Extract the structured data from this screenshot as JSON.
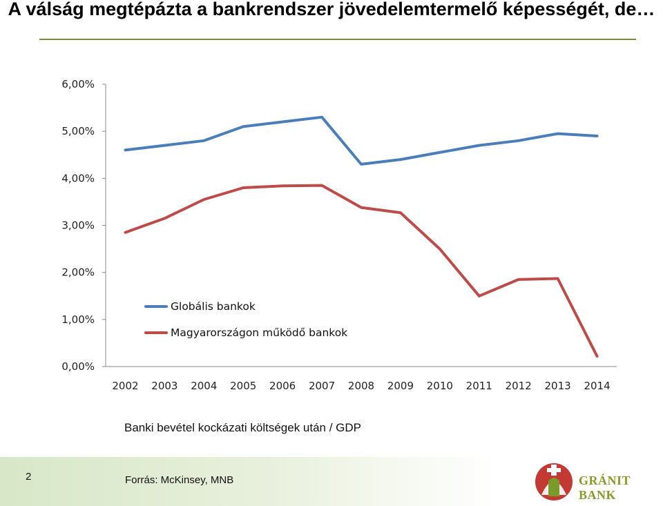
{
  "slide": {
    "title": "A válság megtépázta a bankrendszer jövedelemtermelő képességét, de…",
    "caption": "Banki bevétel  kockázati költségek után / GDP",
    "source": "Forrás: McKinsey, MNB",
    "page_number": "2",
    "logo_text": "GRÁNIT BANK"
  },
  "colors": {
    "global": "#4a7ebb",
    "hungary": "#be4b48",
    "footer": "#d8e7c8",
    "brand": "#8a9a2a"
  },
  "chart_data": {
    "type": "line",
    "categories": [
      "2002",
      "2003",
      "2004",
      "2005",
      "2006",
      "2007",
      "2008",
      "2009",
      "2010",
      "2011",
      "2012",
      "2013",
      "2014"
    ],
    "series": [
      {
        "name": "Globális bankok",
        "values": [
          4.6,
          4.7,
          4.8,
          5.1,
          5.2,
          5.3,
          4.3,
          4.4,
          4.55,
          4.7,
          4.8,
          4.95,
          4.9
        ]
      },
      {
        "name": "Magyarországon működő bankok",
        "values": [
          2.85,
          3.15,
          3.55,
          3.8,
          3.84,
          3.85,
          3.38,
          3.27,
          2.5,
          1.5,
          1.85,
          1.87,
          0.22
        ]
      }
    ],
    "y_ticks": [
      "0,00%",
      "1,00%",
      "2,00%",
      "3,00%",
      "4,00%",
      "5,00%",
      "6,00%"
    ],
    "ylim": [
      0,
      6
    ],
    "legend_position": "middle-left",
    "grid": false
  }
}
